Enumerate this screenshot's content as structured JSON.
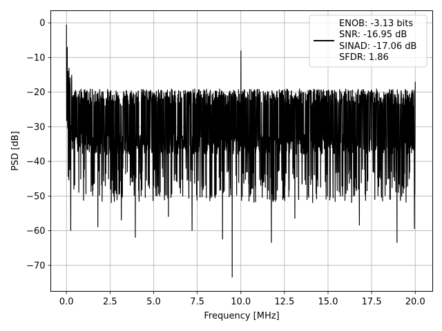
{
  "chart_data": {
    "type": "line",
    "title": "",
    "xlabel": "Frequency [MHz]",
    "ylabel": "PSD [dB]",
    "xlim": [
      -0.9,
      21.0
    ],
    "ylim": [
      -77.5,
      3.5
    ],
    "xticks": [
      0.0,
      2.5,
      5.0,
      7.5,
      10.0,
      12.5,
      15.0,
      17.5,
      20.0
    ],
    "xtick_labels": [
      "0.0",
      "2.5",
      "5.0",
      "7.5",
      "10.0",
      "12.5",
      "15.0",
      "17.5",
      "20.0"
    ],
    "yticks": [
      0,
      -10,
      -20,
      -30,
      -40,
      -50,
      -60,
      -70
    ],
    "ytick_labels": [
      "0",
      "−10",
      "−20",
      "−30",
      "−40",
      "−50",
      "−60",
      "−70"
    ],
    "grid": true,
    "legend_position": "top-right",
    "legend": {
      "lines": [
        "ENOB: -3.13 bits",
        "SNR: -16.95 dB",
        "SINAD: -17.06 dB",
        "SFDR: 1.86"
      ]
    },
    "series": [
      {
        "color": "#000000",
        "noise_floor_range": [
          -38,
          -20
        ],
        "x_range": [
          0.0,
          20.0
        ],
        "peaks": [
          {
            "x": 0.0,
            "y": -0.5
          },
          {
            "x": 0.05,
            "y": -7
          },
          {
            "x": 0.15,
            "y": -13
          },
          {
            "x": 0.3,
            "y": -15
          },
          {
            "x": 10.0,
            "y": -8
          },
          {
            "x": 20.0,
            "y": -17
          }
        ],
        "dips": [
          {
            "x": 0.25,
            "y": -60
          },
          {
            "x": 1.8,
            "y": -59
          },
          {
            "x": 3.15,
            "y": -57
          },
          {
            "x": 3.95,
            "y": -62
          },
          {
            "x": 5.85,
            "y": -56
          },
          {
            "x": 7.2,
            "y": -60
          },
          {
            "x": 8.95,
            "y": -62.5
          },
          {
            "x": 9.5,
            "y": -73.5
          },
          {
            "x": 11.75,
            "y": -63.5
          },
          {
            "x": 13.1,
            "y": -56.5
          },
          {
            "x": 16.8,
            "y": -58.5
          },
          {
            "x": 18.95,
            "y": -63.5
          },
          {
            "x": 19.95,
            "y": -59.5
          }
        ]
      }
    ]
  }
}
